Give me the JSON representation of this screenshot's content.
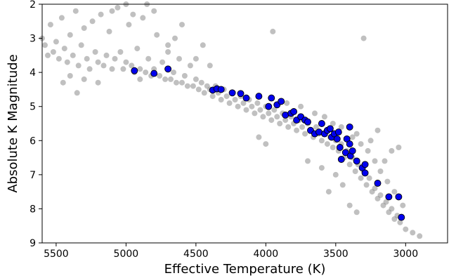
{
  "chart_data": {
    "type": "scatter",
    "title": "",
    "xlabel": "Effective Temperature (K)",
    "ylabel": "Absolute K Magnitude",
    "xlim": [
      5600,
      2700
    ],
    "ylim": [
      9,
      2
    ],
    "x_reversed": true,
    "y_reversed": true,
    "grid": false,
    "x_ticks": [
      5500,
      5000,
      4500,
      4000,
      3500,
      3000
    ],
    "y_ticks": [
      2,
      3,
      4,
      5,
      6,
      7,
      8,
      9
    ],
    "series": [
      {
        "color": "#8c8c8c",
        "marker": "circle",
        "alpha": 0.55,
        "points": [
          [
            5600,
            3.0
          ],
          [
            5580,
            3.2
          ],
          [
            5560,
            3.5
          ],
          [
            5540,
            2.6
          ],
          [
            5520,
            3.4
          ],
          [
            5500,
            3.1
          ],
          [
            5480,
            3.6
          ],
          [
            5460,
            2.4
          ],
          [
            5440,
            3.3
          ],
          [
            5420,
            3.7
          ],
          [
            5400,
            2.9
          ],
          [
            5380,
            3.5
          ],
          [
            5360,
            2.2
          ],
          [
            5340,
            3.8
          ],
          [
            5320,
            3.2
          ],
          [
            5300,
            2.7
          ],
          [
            5280,
            3.6
          ],
          [
            5260,
            3.9
          ],
          [
            5240,
            2.5
          ],
          [
            5220,
            3.4
          ],
          [
            5200,
            3.7
          ],
          [
            5180,
            2.3
          ],
          [
            5160,
            3.8
          ],
          [
            5140,
            3.5
          ],
          [
            5120,
            2.8
          ],
          [
            5100,
            3.9
          ],
          [
            5080,
            3.6
          ],
          [
            5060,
            2.1
          ],
          [
            5040,
            3.4
          ],
          [
            5020,
            3.9
          ],
          [
            5000,
            3.7
          ],
          [
            4980,
            2.6
          ],
          [
            4960,
            3.8
          ],
          [
            4940,
            4.0
          ],
          [
            4920,
            3.3
          ],
          [
            4900,
            3.9
          ],
          [
            4880,
            2.4
          ],
          [
            4860,
            4.0
          ],
          [
            4840,
            3.6
          ],
          [
            4820,
            4.1
          ],
          [
            4800,
            3.9
          ],
          [
            4780,
            2.9
          ],
          [
            4760,
            4.1
          ],
          [
            4740,
            3.7
          ],
          [
            4720,
            4.2
          ],
          [
            4700,
            3.4
          ],
          [
            4680,
            4.2
          ],
          [
            4660,
            4.0
          ],
          [
            4640,
            4.3
          ],
          [
            4620,
            3.6
          ],
          [
            4600,
            4.3
          ],
          [
            4580,
            4.1
          ],
          [
            4560,
            4.4
          ],
          [
            4540,
            3.8
          ],
          [
            4520,
            4.4
          ],
          [
            4500,
            4.2
          ],
          [
            4480,
            4.5
          ],
          [
            4460,
            4.3
          ],
          [
            4440,
            4.6
          ],
          [
            4420,
            4.4
          ],
          [
            4400,
            4.5
          ],
          [
            4380,
            4.7
          ],
          [
            4360,
            4.4
          ],
          [
            4340,
            4.6
          ],
          [
            4320,
            4.8
          ],
          [
            4300,
            4.5
          ],
          [
            4280,
            4.7
          ],
          [
            4260,
            4.9
          ],
          [
            4240,
            4.6
          ],
          [
            4220,
            4.8
          ],
          [
            4200,
            5.0
          ],
          [
            4180,
            4.7
          ],
          [
            4160,
            4.9
          ],
          [
            4140,
            5.1
          ],
          [
            4120,
            4.8
          ],
          [
            4100,
            5.0
          ],
          [
            4080,
            5.2
          ],
          [
            4060,
            4.9
          ],
          [
            4040,
            5.1
          ],
          [
            4020,
            5.3
          ],
          [
            4000,
            5.0
          ],
          [
            3980,
            5.2
          ],
          [
            3960,
            5.4
          ],
          [
            3940,
            5.1
          ],
          [
            3920,
            5.3
          ],
          [
            3900,
            5.5
          ],
          [
            3880,
            5.2
          ],
          [
            3860,
            5.4
          ],
          [
            3840,
            5.6
          ],
          [
            3820,
            5.3
          ],
          [
            3800,
            5.5
          ],
          [
            3780,
            5.7
          ],
          [
            3760,
            5.4
          ],
          [
            3740,
            5.6
          ],
          [
            3720,
            5.8
          ],
          [
            3700,
            5.5
          ],
          [
            3680,
            5.7
          ],
          [
            3660,
            5.9
          ],
          [
            3640,
            5.6
          ],
          [
            3620,
            5.8
          ],
          [
            3600,
            6.0
          ],
          [
            3580,
            5.8
          ],
          [
            3560,
            6.1
          ],
          [
            3540,
            5.9
          ],
          [
            3520,
            6.2
          ],
          [
            3500,
            6.0
          ],
          [
            3480,
            6.3
          ],
          [
            3460,
            6.1
          ],
          [
            3440,
            6.5
          ],
          [
            3420,
            6.3
          ],
          [
            3400,
            6.7
          ],
          [
            3380,
            6.5
          ],
          [
            3360,
            6.9
          ],
          [
            3340,
            6.7
          ],
          [
            3320,
            7.1
          ],
          [
            3300,
            6.9
          ],
          [
            3280,
            7.3
          ],
          [
            3260,
            7.1
          ],
          [
            3240,
            7.5
          ],
          [
            3220,
            7.4
          ],
          [
            3200,
            7.7
          ],
          [
            3180,
            7.6
          ],
          [
            3160,
            7.9
          ],
          [
            3140,
            7.8
          ],
          [
            3120,
            8.1
          ],
          [
            3100,
            8.0
          ],
          [
            3080,
            8.3
          ],
          [
            3060,
            8.2
          ],
          [
            3040,
            8.4
          ],
          [
            3000,
            8.6
          ],
          [
            2950,
            8.7
          ],
          [
            2900,
            8.8
          ],
          [
            4000,
            6.1
          ],
          [
            4050,
            5.9
          ],
          [
            3950,
            2.8
          ],
          [
            3300,
            3.0
          ],
          [
            3350,
            5.8
          ],
          [
            3250,
            6.0
          ],
          [
            3150,
            6.6
          ],
          [
            3100,
            6.3
          ],
          [
            3050,
            6.2
          ],
          [
            3200,
            5.7
          ],
          [
            3500,
            7.0
          ],
          [
            3450,
            7.3
          ],
          [
            3600,
            6.8
          ],
          [
            3550,
            7.5
          ],
          [
            3400,
            7.9
          ],
          [
            3350,
            8.1
          ],
          [
            3700,
            6.6
          ],
          [
            5400,
            4.1
          ],
          [
            5300,
            4.2
          ],
          [
            5200,
            4.3
          ],
          [
            5350,
            4.6
          ],
          [
            5450,
            4.3
          ],
          [
            4900,
            4.2
          ],
          [
            4800,
            2.2
          ],
          [
            4850,
            2.0
          ],
          [
            5000,
            2.0
          ],
          [
            4950,
            2.3
          ],
          [
            5100,
            2.2
          ],
          [
            4700,
            3.2
          ],
          [
            4650,
            3.0
          ],
          [
            4600,
            2.6
          ],
          [
            4500,
            3.6
          ],
          [
            4450,
            3.2
          ],
          [
            4400,
            3.8
          ],
          [
            3850,
            4.9
          ],
          [
            3750,
            5.0
          ],
          [
            3650,
            5.2
          ],
          [
            3580,
            5.3
          ],
          [
            3520,
            5.5
          ],
          [
            3460,
            5.6
          ],
          [
            3380,
            5.9
          ],
          [
            3320,
            6.1
          ],
          [
            3270,
            6.3
          ],
          [
            3220,
            6.6
          ],
          [
            3180,
            6.9
          ],
          [
            3130,
            7.2
          ],
          [
            3080,
            7.5
          ],
          [
            3020,
            7.9
          ]
        ]
      },
      {
        "color": "#0000ee",
        "marker": "circle",
        "alpha": 1.0,
        "edgecolor": "#000000",
        "points": [
          [
            4940,
            3.95
          ],
          [
            4800,
            4.03
          ],
          [
            4700,
            3.9
          ],
          [
            4380,
            4.52
          ],
          [
            4350,
            4.48
          ],
          [
            4320,
            4.5
          ],
          [
            4240,
            4.6
          ],
          [
            4180,
            4.62
          ],
          [
            4140,
            4.75
          ],
          [
            4050,
            4.7
          ],
          [
            3980,
            5.0
          ],
          [
            3960,
            4.75
          ],
          [
            3920,
            4.95
          ],
          [
            3890,
            4.85
          ],
          [
            3860,
            5.25
          ],
          [
            3820,
            5.2
          ],
          [
            3800,
            5.15
          ],
          [
            3780,
            5.4
          ],
          [
            3750,
            5.3
          ],
          [
            3720,
            5.4
          ],
          [
            3700,
            5.45
          ],
          [
            3680,
            5.7
          ],
          [
            3650,
            5.8
          ],
          [
            3620,
            5.75
          ],
          [
            3600,
            5.5
          ],
          [
            3580,
            5.8
          ],
          [
            3560,
            5.7
          ],
          [
            3540,
            5.65
          ],
          [
            3530,
            5.9
          ],
          [
            3510,
            5.8
          ],
          [
            3490,
            5.95
          ],
          [
            3480,
            5.75
          ],
          [
            3470,
            6.2
          ],
          [
            3460,
            6.55
          ],
          [
            3430,
            6.35
          ],
          [
            3420,
            5.95
          ],
          [
            3400,
            6.1
          ],
          [
            3395,
            6.45
          ],
          [
            3400,
            5.6
          ],
          [
            3380,
            6.3
          ],
          [
            3350,
            6.6
          ],
          [
            3310,
            6.8
          ],
          [
            3290,
            6.7
          ],
          [
            3290,
            6.95
          ],
          [
            3200,
            7.25
          ],
          [
            3120,
            7.65
          ],
          [
            3050,
            7.65
          ],
          [
            3030,
            8.25
          ]
        ]
      }
    ]
  }
}
